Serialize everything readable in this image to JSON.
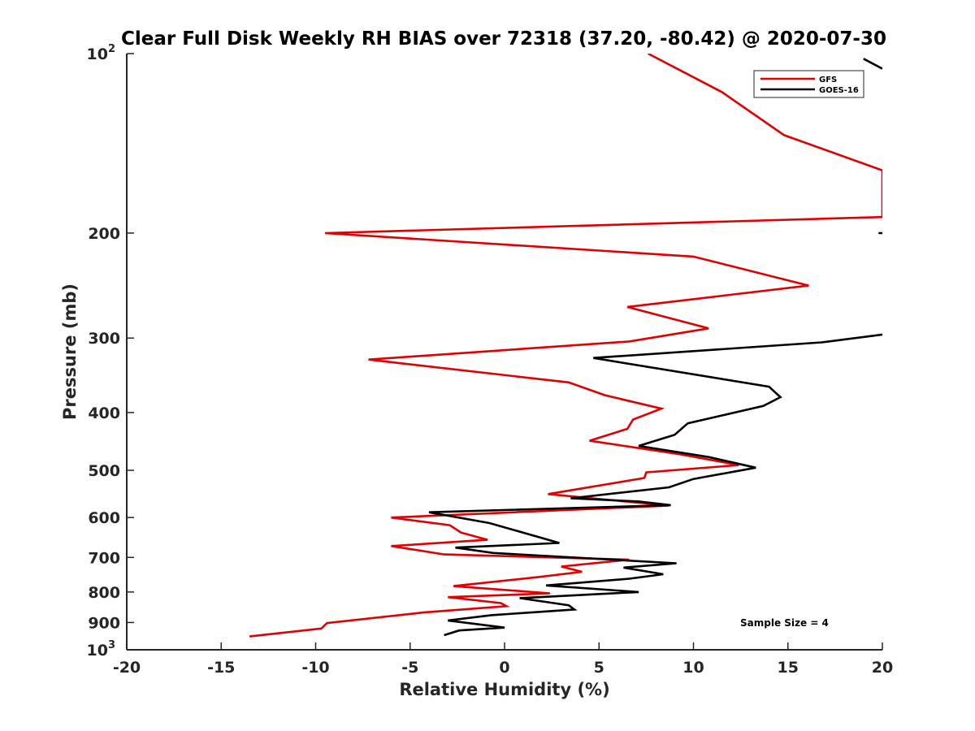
{
  "chart_data": {
    "type": "line",
    "title": "Clear Full Disk Weekly RH BIAS over 72318 (37.20, -80.42) @ 2020-07-30",
    "xlabel": "Relative Humidity (%)",
    "ylabel": "Pressure (mb)",
    "xlim": [
      -20,
      20
    ],
    "ylim": [
      100,
      1000
    ],
    "y_scale": "log",
    "y_reversed": true,
    "grid": false,
    "legend_position": "top-right",
    "x_ticks": [
      "-20",
      "-15",
      "-10",
      "-5",
      "0",
      "5",
      "10",
      "15",
      "20"
    ],
    "y_ticks": [
      {
        "value": 100,
        "base": "10",
        "exp": "2"
      },
      {
        "value": 200,
        "label": "200"
      },
      {
        "value": 300,
        "label": "300"
      },
      {
        "value": 400,
        "label": "400"
      },
      {
        "value": 500,
        "label": "500"
      },
      {
        "value": 600,
        "label": "600"
      },
      {
        "value": 700,
        "label": "700"
      },
      {
        "value": 800,
        "label": "800"
      },
      {
        "value": 900,
        "label": "900"
      },
      {
        "value": 1000,
        "base": "10",
        "exp": "3"
      }
    ],
    "series": [
      {
        "name": "GFS",
        "color": "#e00000",
        "points": [
          [
            7.6,
            100
          ],
          [
            11.5,
            116
          ],
          [
            14.8,
            137
          ],
          [
            20.0,
            157
          ],
          [
            20.0,
            188
          ],
          [
            -9.5,
            200
          ],
          [
            10.0,
            219
          ],
          [
            16.1,
            245
          ],
          [
            6.5,
            266
          ],
          [
            10.8,
            289
          ],
          [
            6.6,
            304
          ],
          [
            -7.2,
            326
          ],
          [
            3.4,
            356
          ],
          [
            5.3,
            374
          ],
          [
            8.3,
            394
          ],
          [
            6.8,
            411
          ],
          [
            6.5,
            426
          ],
          [
            4.5,
            446
          ],
          [
            9.3,
            470
          ],
          [
            12.4,
            490
          ],
          [
            7.5,
            504
          ],
          [
            7.4,
            515
          ],
          [
            2.3,
            548
          ],
          [
            8.7,
            573
          ],
          [
            -6.0,
            600
          ],
          [
            -2.9,
            618
          ],
          [
            -2.3,
            636
          ],
          [
            -0.9,
            654
          ],
          [
            -6.0,
            670
          ],
          [
            -3.2,
            692
          ],
          [
            6.6,
            706
          ],
          [
            3.0,
            725
          ],
          [
            4.1,
            740
          ],
          [
            1.8,
            755
          ],
          [
            -2.7,
            782
          ],
          [
            2.4,
            804
          ],
          [
            -3.0,
            816
          ],
          [
            -0.2,
            835
          ],
          [
            0.1,
            845
          ],
          [
            -4.3,
            866
          ],
          [
            -9.4,
            902
          ],
          [
            -9.7,
            921
          ],
          [
            -13.5,
            950
          ]
        ]
      },
      {
        "name": "GOES-16",
        "color": "#000000",
        "points": [
          [
            19.0,
            102
          ],
          [
            20.0,
            106
          ],
          null,
          [
            19.8,
            200
          ],
          [
            20.0,
            200
          ],
          null,
          [
            20.0,
            296
          ],
          [
            16.8,
            305
          ],
          [
            4.7,
            324
          ],
          [
            14.0,
            362
          ],
          [
            14.6,
            377
          ],
          [
            13.7,
            390
          ],
          [
            9.7,
            417
          ],
          [
            9.0,
            436
          ],
          [
            7.1,
            455
          ],
          [
            10.8,
            475
          ],
          [
            13.3,
            495
          ],
          [
            10.0,
            517
          ],
          [
            8.7,
            534
          ],
          [
            3.5,
            557
          ],
          [
            7.1,
            564
          ],
          [
            8.8,
            572
          ],
          [
            -4.0,
            588
          ],
          [
            -0.8,
            613
          ],
          [
            2.9,
            662
          ],
          [
            -2.6,
            674
          ],
          [
            -0.6,
            688
          ],
          [
            9.1,
            716
          ],
          [
            6.3,
            728
          ],
          [
            8.4,
            747
          ],
          [
            6.6,
            760
          ],
          [
            2.2,
            780
          ],
          [
            7.1,
            800
          ],
          [
            0.8,
            819
          ],
          [
            3.4,
            842
          ],
          [
            3.7,
            856
          ],
          [
            -0.7,
            875
          ],
          [
            -3.0,
            893
          ],
          [
            0.0,
            918
          ],
          [
            -2.4,
            928
          ],
          [
            -3.2,
            945
          ]
        ]
      }
    ],
    "annotation": "Sample Size = 4"
  }
}
